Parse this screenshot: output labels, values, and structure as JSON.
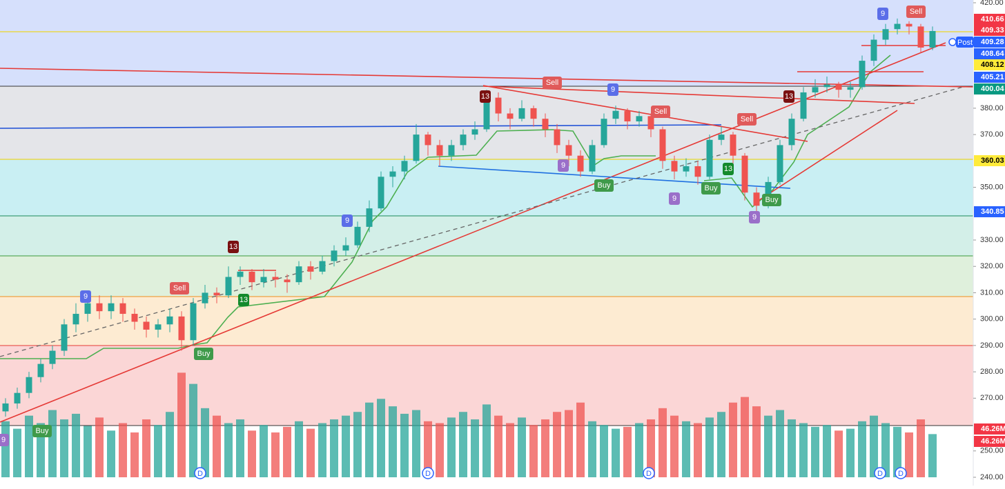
{
  "chart_data": {
    "type": "candlestick",
    "ylim": [
      240,
      420
    ],
    "yticks": [
      {
        "value": 420,
        "label": "420.00"
      },
      {
        "value": 380,
        "label": "380.00"
      },
      {
        "value": 370,
        "label": "370.00"
      },
      {
        "value": 350,
        "label": "350.00"
      },
      {
        "value": 330,
        "label": "330.00"
      },
      {
        "value": 320,
        "label": "320.00"
      },
      {
        "value": 310,
        "label": "310.00"
      },
      {
        "value": 300,
        "label": "300.00"
      },
      {
        "value": 290,
        "label": "290.00"
      },
      {
        "value": 280,
        "label": "280.00"
      },
      {
        "value": 270,
        "label": "270.00"
      },
      {
        "value": 250,
        "label": "250.00"
      },
      {
        "value": 240,
        "label": "240.00"
      }
    ],
    "up_color": "#26a69a",
    "down_color": "#ef5350",
    "candles": [
      [
        265,
        270,
        263,
        268
      ],
      [
        268,
        274,
        266,
        272
      ],
      [
        272,
        280,
        270,
        278
      ],
      [
        278,
        285,
        276,
        283
      ],
      [
        283,
        290,
        281,
        288
      ],
      [
        288,
        300,
        286,
        298
      ],
      [
        298,
        306,
        295,
        302
      ],
      [
        302,
        310,
        299,
        306
      ],
      [
        306,
        309,
        300,
        303
      ],
      [
        303,
        309,
        300,
        306
      ],
      [
        306,
        308,
        299,
        302
      ],
      [
        302,
        304,
        296,
        299
      ],
      [
        299,
        301,
        293,
        296
      ],
      [
        296,
        300,
        293,
        298
      ],
      [
        298,
        304,
        295,
        301
      ],
      [
        301,
        303,
        288,
        292
      ],
      [
        292,
        308,
        290,
        306
      ],
      [
        306,
        313,
        304,
        310
      ],
      [
        310,
        312,
        306,
        309
      ],
      [
        309,
        320,
        308,
        316
      ],
      [
        316,
        320,
        313,
        318
      ],
      [
        318,
        319,
        311,
        314
      ],
      [
        314,
        319,
        312,
        316
      ],
      [
        316,
        318,
        312,
        315
      ],
      [
        315,
        317,
        310,
        314
      ],
      [
        314,
        322,
        313,
        320
      ],
      [
        320,
        322,
        315,
        318
      ],
      [
        318,
        324,
        317,
        322
      ],
      [
        322,
        328,
        320,
        326
      ],
      [
        326,
        331,
        324,
        328
      ],
      [
        328,
        337,
        327,
        335
      ],
      [
        335,
        345,
        333,
        342
      ],
      [
        342,
        356,
        341,
        354
      ],
      [
        354,
        358,
        350,
        356
      ],
      [
        356,
        362,
        353,
        360
      ],
      [
        360,
        374,
        359,
        370
      ],
      [
        370,
        371,
        362,
        366
      ],
      [
        366,
        368,
        358,
        362
      ],
      [
        362,
        368,
        360,
        366
      ],
      [
        366,
        372,
        364,
        370
      ],
      [
        370,
        375,
        368,
        372
      ],
      [
        372,
        387,
        371,
        384
      ],
      [
        384,
        386,
        375,
        378
      ],
      [
        378,
        380,
        372,
        376
      ],
      [
        376,
        383,
        375,
        380
      ],
      [
        380,
        381,
        373,
        376
      ],
      [
        376,
        378,
        369,
        372
      ],
      [
        372,
        374,
        363,
        366
      ],
      [
        366,
        368,
        358,
        362
      ],
      [
        362,
        364,
        354,
        356
      ],
      [
        356,
        368,
        355,
        366
      ],
      [
        366,
        378,
        365,
        376
      ],
      [
        376,
        381,
        374,
        379
      ],
      [
        379,
        380,
        372,
        375
      ],
      [
        375,
        379,
        373,
        377
      ],
      [
        377,
        378,
        369,
        372
      ],
      [
        372,
        373,
        357,
        360
      ],
      [
        360,
        362,
        353,
        356
      ],
      [
        356,
        361,
        354,
        358
      ],
      [
        358,
        360,
        351,
        354
      ],
      [
        354,
        370,
        353,
        368
      ],
      [
        368,
        373,
        366,
        370
      ],
      [
        370,
        371,
        359,
        362
      ],
      [
        362,
        363,
        345,
        348
      ],
      [
        348,
        350,
        340,
        343
      ],
      [
        343,
        354,
        342,
        352
      ],
      [
        352,
        368,
        351,
        366
      ],
      [
        366,
        378,
        364,
        376
      ],
      [
        376,
        388,
        375,
        386
      ],
      [
        386,
        391,
        384,
        388
      ],
      [
        388,
        392,
        386,
        389
      ],
      [
        389,
        390,
        384,
        387
      ],
      [
        387,
        390,
        384,
        388
      ],
      [
        388,
        400,
        387,
        398
      ],
      [
        398,
        408,
        396,
        406
      ],
      [
        406,
        412,
        404,
        410
      ],
      [
        410,
        414,
        408,
        412
      ],
      [
        412,
        413,
        408,
        411
      ],
      [
        411,
        412,
        401,
        403
      ],
      [
        403,
        411,
        402,
        409.28
      ]
    ],
    "volume_lim": [
      0,
      130
    ],
    "volume": [
      60,
      52,
      66,
      58,
      72,
      62,
      68,
      55,
      64,
      50,
      58,
      48,
      62,
      56,
      70,
      112,
      100,
      74,
      66,
      58,
      62,
      50,
      56,
      48,
      54,
      60,
      52,
      58,
      62,
      66,
      70,
      80,
      84,
      76,
      68,
      72,
      60,
      58,
      64,
      70,
      62,
      78,
      66,
      58,
      64,
      56,
      62,
      70,
      72,
      80,
      60,
      56,
      52,
      54,
      58,
      62,
      74,
      66,
      60,
      58,
      64,
      70,
      80,
      86,
      76,
      66,
      72,
      62,
      58,
      54,
      56,
      50,
      52,
      60,
      66,
      58,
      54,
      48,
      62,
      46.26
    ],
    "price_tags": [
      {
        "value": 410.66,
        "color": "#f23645"
      },
      {
        "value": 409.33,
        "color": "#f23645"
      },
      {
        "value": 409.28,
        "color": "#2962ff"
      },
      {
        "value": 408.64,
        "color": "#2962ff"
      },
      {
        "value": 408.12,
        "color": "#ffeb3b"
      },
      {
        "value": 405.21,
        "color": "#2962ff"
      },
      {
        "value": 400.04,
        "color": "#089981"
      },
      {
        "value": 360.03,
        "color": "#ffeb3b"
      },
      {
        "value": 340.85,
        "color": "#2962ff"
      },
      {
        "value": 46.26,
        "label": "46.26M",
        "color": "#f23645"
      },
      {
        "value": 46.26,
        "label": "46.26M",
        "color": "#f23645"
      }
    ],
    "signals": [
      {
        "text": 9,
        "color": "#5b6ee8"
      },
      {
        "text": "Sell",
        "color": "#e05a5a"
      },
      {
        "text": 13,
        "color": "#7a1010"
      },
      {
        "text": 13,
        "color": "#138a2c"
      },
      {
        "text": "Buy",
        "color": "#3f9a4a"
      },
      {
        "text": 9,
        "color": "#5b6ee8"
      },
      {
        "text": 13,
        "color": "#7a1010"
      },
      {
        "text": "Sell",
        "color": "#e05a5a"
      },
      {
        "text": 9,
        "color": "#5b6ee8"
      },
      {
        "text": 9,
        "color": "#9a6fc9"
      },
      {
        "text": "Buy",
        "color": "#3f9a4a"
      },
      {
        "text": "Sell",
        "color": "#e05a5a"
      },
      {
        "text": "Sell",
        "color": "#e05a5a"
      },
      {
        "text": 9,
        "color": "#9a6fc9"
      },
      {
        "text": "Buy",
        "color": "#3f9a4a"
      },
      {
        "text": 13,
        "color": "#138a2c"
      },
      {
        "text": 9,
        "color": "#9a6fc9"
      },
      {
        "text": "Buy",
        "color": "#3f9a4a"
      },
      {
        "text": 13,
        "color": "#7a1010"
      },
      {
        "text": 9,
        "color": "#5b6ee8"
      },
      {
        "text": "Sell",
        "color": "#e05a5a"
      },
      {
        "text": "Buy",
        "color": "#3f9a4a"
      },
      {
        "text": 9,
        "color": "#9a6fc9"
      }
    ],
    "events": [
      "D",
      "D",
      "D",
      "D",
      "D"
    ],
    "session_label": "Post"
  }
}
